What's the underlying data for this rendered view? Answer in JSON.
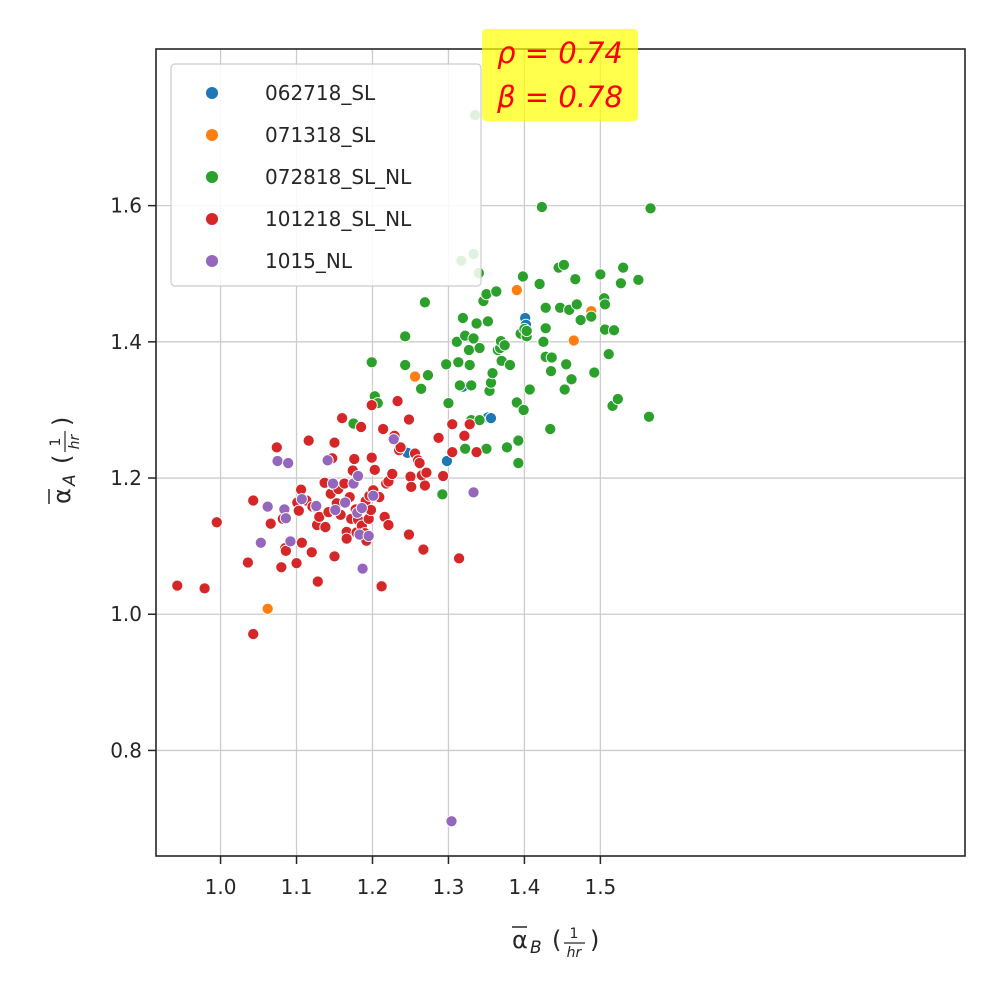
{
  "chart_data": {
    "type": "scatter",
    "title": "",
    "xlabel": {
      "symbol": "α",
      "sub": "B",
      "frac_num": "1",
      "frac_den": "hr"
    },
    "ylabel": {
      "symbol": "α",
      "sub": "A",
      "frac_num": "1",
      "frac_den": "hr"
    },
    "xlim": [
      0.915,
      1.98
    ],
    "ylim": [
      0.645,
      1.83
    ],
    "xticks": [
      1.0,
      1.1,
      1.2,
      1.3,
      1.4,
      1.5
    ],
    "xtick_labels": [
      "1.0",
      "1.1",
      "1.2",
      "1.3",
      "1.4",
      "1.5"
    ],
    "yticks": [
      0.8,
      1.0,
      1.2,
      1.4,
      1.6
    ],
    "ytick_labels": [
      "0.8",
      "1.0",
      "1.2",
      "1.4",
      "1.6"
    ],
    "grid": true,
    "legend_position": "top-left",
    "annotation": {
      "rho": "ρ = 0.74",
      "beta": "β = 0.78",
      "background": "#ffff00"
    },
    "series": [
      {
        "name": "062718_SL",
        "color": "#1f77b4",
        "points": [
          [
            1.246,
            1.237
          ],
          [
            1.298,
            1.225
          ],
          [
            1.319,
            1.334
          ],
          [
            1.352,
            1.289
          ],
          [
            1.356,
            1.288
          ],
          [
            1.401,
            1.435
          ],
          [
            1.402,
            1.425
          ]
        ]
      },
      {
        "name": "071318_SL",
        "color": "#ff7f0e",
        "points": [
          [
            1.062,
            1.008
          ],
          [
            1.256,
            1.349
          ],
          [
            1.39,
            1.476
          ],
          [
            1.465,
            1.402
          ],
          [
            1.488,
            1.445
          ]
        ]
      },
      {
        "name": "072818_SL_NL",
        "color": "#2ca02c",
        "points": [
          [
            1.175,
            1.28
          ],
          [
            1.199,
            1.37
          ],
          [
            1.203,
            1.32
          ],
          [
            1.207,
            1.31
          ],
          [
            1.243,
            1.408
          ],
          [
            1.243,
            1.366
          ],
          [
            1.264,
            1.331
          ],
          [
            1.269,
            1.458
          ],
          [
            1.273,
            1.351
          ],
          [
            1.292,
            1.176
          ],
          [
            1.297,
            1.367
          ],
          [
            1.3,
            1.31
          ],
          [
            1.311,
            1.4
          ],
          [
            1.313,
            1.37
          ],
          [
            1.315,
            1.336
          ],
          [
            1.317,
            1.519
          ],
          [
            1.319,
            1.435
          ],
          [
            1.322,
            1.409
          ],
          [
            1.322,
            1.243
          ],
          [
            1.327,
            1.388
          ],
          [
            1.328,
            1.366
          ],
          [
            1.33,
            1.285
          ],
          [
            1.33,
            1.336
          ],
          [
            1.333,
            1.405
          ],
          [
            1.333,
            1.529
          ],
          [
            1.335,
            1.733
          ],
          [
            1.337,
            1.427
          ],
          [
            1.34,
            1.501
          ],
          [
            1.341,
            1.391
          ],
          [
            1.341,
            1.285
          ],
          [
            1.346,
            1.46
          ],
          [
            1.35,
            1.47
          ],
          [
            1.35,
            1.243
          ],
          [
            1.352,
            1.43
          ],
          [
            1.354,
            1.328
          ],
          [
            1.356,
            1.34
          ],
          [
            1.358,
            1.354
          ],
          [
            1.363,
            1.474
          ],
          [
            1.365,
            1.388
          ],
          [
            1.368,
            1.391
          ],
          [
            1.369,
            1.401
          ],
          [
            1.37,
            1.372
          ],
          [
            1.374,
            1.395
          ],
          [
            1.377,
            1.245
          ],
          [
            1.381,
            1.366
          ],
          [
            1.39,
            1.311
          ],
          [
            1.392,
            1.255
          ],
          [
            1.392,
            1.222
          ],
          [
            1.395,
            1.412
          ],
          [
            1.398,
            1.496
          ],
          [
            1.399,
            1.3
          ],
          [
            1.4,
            1.419
          ],
          [
            1.403,
            1.408
          ],
          [
            1.403,
            1.416
          ],
          [
            1.407,
            1.33
          ],
          [
            1.42,
            1.485
          ],
          [
            1.423,
            1.598
          ],
          [
            1.425,
            1.4
          ],
          [
            1.428,
            1.45
          ],
          [
            1.428,
            1.42
          ],
          [
            1.428,
            1.378
          ],
          [
            1.434,
            1.272
          ],
          [
            1.435,
            1.357
          ],
          [
            1.436,
            1.377
          ],
          [
            1.445,
            1.509
          ],
          [
            1.447,
            1.45
          ],
          [
            1.452,
            1.513
          ],
          [
            1.453,
            1.33
          ],
          [
            1.455,
            1.367
          ],
          [
            1.459,
            1.447
          ],
          [
            1.462,
            1.345
          ],
          [
            1.467,
            1.492
          ],
          [
            1.469,
            1.455
          ],
          [
            1.474,
            1.432
          ],
          [
            1.488,
            1.437
          ],
          [
            1.492,
            1.355
          ],
          [
            1.5,
            1.499
          ],
          [
            1.505,
            1.464
          ],
          [
            1.506,
            1.455
          ],
          [
            1.506,
            1.418
          ],
          [
            1.511,
            1.382
          ],
          [
            1.516,
            1.306
          ],
          [
            1.518,
            1.417
          ],
          [
            1.523,
            1.316
          ],
          [
            1.527,
            1.486
          ],
          [
            1.53,
            1.509
          ],
          [
            1.55,
            1.491
          ],
          [
            1.564,
            1.29
          ],
          [
            1.566,
            1.596
          ]
        ]
      },
      {
        "name": "101218_SL_NL",
        "color": "#d62728",
        "points": [
          [
            0.943,
            1.042
          ],
          [
            0.979,
            1.038
          ],
          [
            0.995,
            1.135
          ],
          [
            1.036,
            1.076
          ],
          [
            1.043,
            1.167
          ],
          [
            1.043,
            0.971
          ],
          [
            1.066,
            1.133
          ],
          [
            1.074,
            1.245
          ],
          [
            1.08,
            1.069
          ],
          [
            1.082,
            1.14
          ],
          [
            1.085,
            1.097
          ],
          [
            1.086,
            1.093
          ],
          [
            1.1,
            1.075
          ],
          [
            1.101,
            1.164
          ],
          [
            1.103,
            1.152
          ],
          [
            1.106,
            1.183
          ],
          [
            1.107,
            1.105
          ],
          [
            1.113,
            1.167
          ],
          [
            1.116,
            1.255
          ],
          [
            1.12,
            1.091
          ],
          [
            1.121,
            1.158
          ],
          [
            1.126,
            1.157
          ],
          [
            1.127,
            1.131
          ],
          [
            1.128,
            1.048
          ],
          [
            1.13,
            1.143
          ],
          [
            1.137,
            1.193
          ],
          [
            1.138,
            1.128
          ],
          [
            1.142,
            1.15
          ],
          [
            1.145,
            1.177
          ],
          [
            1.147,
            1.229
          ],
          [
            1.148,
            1.191
          ],
          [
            1.15,
            1.252
          ],
          [
            1.15,
            1.085
          ],
          [
            1.153,
            1.163
          ],
          [
            1.155,
            1.184
          ],
          [
            1.158,
            1.146
          ],
          [
            1.16,
            1.288
          ],
          [
            1.163,
            1.192
          ],
          [
            1.166,
            1.121
          ],
          [
            1.166,
            1.111
          ],
          [
            1.17,
            1.172
          ],
          [
            1.172,
            1.14
          ],
          [
            1.174,
            1.211
          ],
          [
            1.176,
            1.228
          ],
          [
            1.178,
            1.154
          ],
          [
            1.179,
            1.12
          ],
          [
            1.181,
            1.139
          ],
          [
            1.185,
            1.275
          ],
          [
            1.186,
            1.13
          ],
          [
            1.19,
            1.119
          ],
          [
            1.191,
            1.166
          ],
          [
            1.192,
            1.108
          ],
          [
            1.195,
            1.14
          ],
          [
            1.196,
            1.174
          ],
          [
            1.198,
            1.153
          ],
          [
            1.199,
            1.307
          ],
          [
            1.199,
            1.23
          ],
          [
            1.201,
            1.182
          ],
          [
            1.203,
            1.212
          ],
          [
            1.209,
            1.172
          ],
          [
            1.212,
            1.041
          ],
          [
            1.214,
            1.272
          ],
          [
            1.216,
            1.143
          ],
          [
            1.218,
            1.192
          ],
          [
            1.221,
            1.131
          ],
          [
            1.221,
            1.195
          ],
          [
            1.226,
            1.206
          ],
          [
            1.229,
            1.262
          ],
          [
            1.233,
            1.313
          ],
          [
            1.235,
            1.241
          ],
          [
            1.237,
            1.245
          ],
          [
            1.248,
            1.117
          ],
          [
            1.248,
            1.286
          ],
          [
            1.25,
            1.202
          ],
          [
            1.251,
            1.187
          ],
          [
            1.256,
            1.236
          ],
          [
            1.26,
            1.226
          ],
          [
            1.262,
            1.222
          ],
          [
            1.265,
            1.204
          ],
          [
            1.267,
            1.095
          ],
          [
            1.269,
            1.189
          ],
          [
            1.271,
            1.208
          ],
          [
            1.287,
            1.259
          ],
          [
            1.293,
            1.203
          ],
          [
            1.305,
            1.279
          ],
          [
            1.305,
            1.238
          ],
          [
            1.314,
            1.082
          ],
          [
            1.321,
            1.262
          ],
          [
            1.328,
            1.279
          ],
          [
            1.337,
            1.238
          ]
        ]
      },
      {
        "name": "1015_NL",
        "color": "#9467bd",
        "points": [
          [
            1.053,
            1.105
          ],
          [
            1.062,
            1.158
          ],
          [
            1.075,
            1.225
          ],
          [
            1.084,
            1.154
          ],
          [
            1.086,
            1.141
          ],
          [
            1.089,
            1.222
          ],
          [
            1.092,
            1.107
          ],
          [
            1.107,
            1.169
          ],
          [
            1.126,
            1.159
          ],
          [
            1.141,
            1.226
          ],
          [
            1.148,
            1.192
          ],
          [
            1.151,
            1.153
          ],
          [
            1.164,
            1.164
          ],
          [
            1.175,
            1.192
          ],
          [
            1.18,
            1.149
          ],
          [
            1.181,
            1.203
          ],
          [
            1.183,
            1.117
          ],
          [
            1.186,
            1.156
          ],
          [
            1.187,
            1.067
          ],
          [
            1.195,
            1.115
          ],
          [
            1.201,
            1.174
          ],
          [
            1.228,
            1.257
          ],
          [
            1.333,
            1.179
          ],
          [
            1.304,
            0.696
          ]
        ]
      }
    ]
  }
}
